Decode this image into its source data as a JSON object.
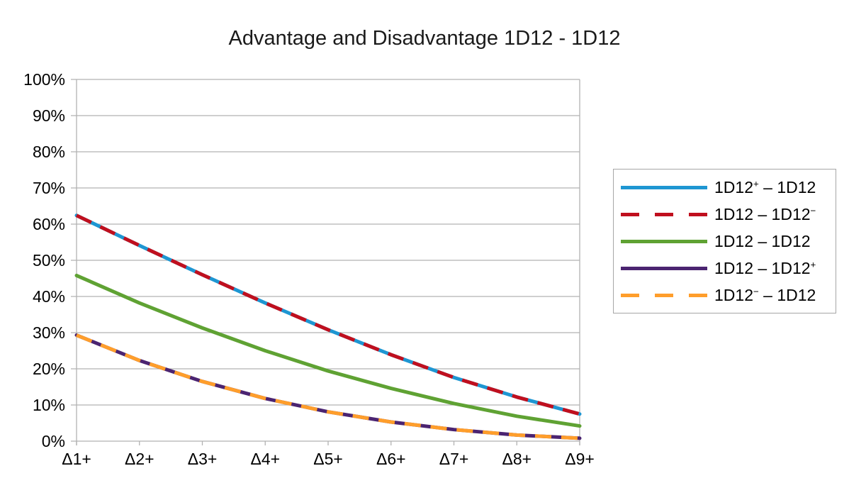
{
  "page": {
    "background": "#ffffff"
  },
  "chart_data": {
    "type": "line",
    "title": "Advantage and Disadvantage 1D12 - 1D12",
    "xlabel": "",
    "ylabel": "",
    "ylim": [
      0,
      100
    ],
    "grid": "horizontal-only",
    "grid_color": "#b2b2b2",
    "legend_position": "right",
    "categories": [
      "Δ1+",
      "Δ2+",
      "Δ3+",
      "Δ4+",
      "Δ5+",
      "Δ6+",
      "Δ7+",
      "Δ8+",
      "Δ9+"
    ],
    "yticks": [
      {
        "value": 100,
        "label": "100%"
      },
      {
        "value": 90,
        "label": "90%"
      },
      {
        "value": 80,
        "label": "80%"
      },
      {
        "value": 70,
        "label": "70%"
      },
      {
        "value": 60,
        "label": "60%"
      },
      {
        "value": 50,
        "label": "50%"
      },
      {
        "value": 40,
        "label": "40%"
      },
      {
        "value": 30,
        "label": "30%"
      },
      {
        "value": 20,
        "label": "20%"
      },
      {
        "value": 10,
        "label": "10%"
      },
      {
        "value": 0,
        "label": "0%"
      }
    ],
    "series": [
      {
        "name": "1D12⁺ – 1D12",
        "color": "#1e96d2",
        "style": "solid",
        "values": [
          62.4,
          54.1,
          46.0,
          38.2,
          30.8,
          23.9,
          17.6,
          12.2,
          7.5
        ]
      },
      {
        "name": "1D12 – 1D12⁻",
        "color": "#c00f1e",
        "style": "dashed",
        "values": [
          62.4,
          54.1,
          46.0,
          38.2,
          30.8,
          23.9,
          17.6,
          12.2,
          7.5
        ]
      },
      {
        "name": "1D12 – 1D12",
        "color": "#5fa233",
        "style": "solid",
        "values": [
          45.8,
          38.2,
          31.3,
          25.0,
          19.4,
          14.6,
          10.4,
          6.9,
          4.2
        ]
      },
      {
        "name": "1D12 – 1D12⁺",
        "color": "#4b2471",
        "style": "solid",
        "values": [
          29.3,
          22.3,
          16.5,
          11.8,
          8.1,
          5.3,
          3.2,
          1.7,
          0.8
        ]
      },
      {
        "name": "1D12⁻ – 1D12",
        "color": "#ff9e2b",
        "style": "dashed",
        "values": [
          29.3,
          22.3,
          16.5,
          11.8,
          8.1,
          5.3,
          3.2,
          1.7,
          0.8
        ]
      }
    ]
  }
}
